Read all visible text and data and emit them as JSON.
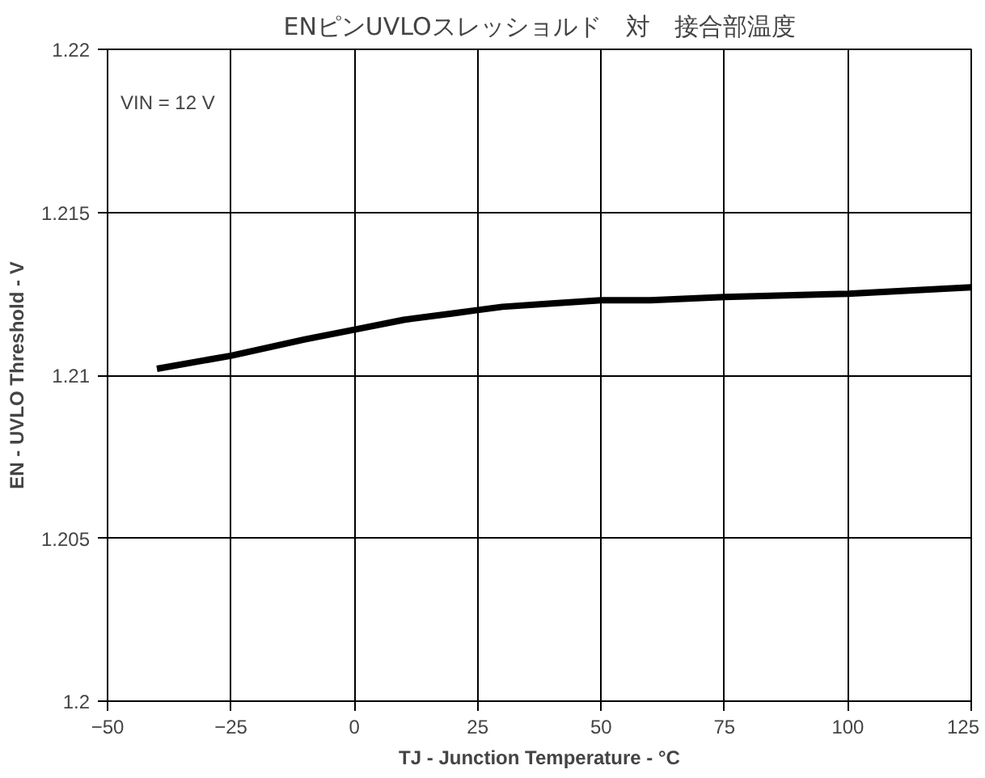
{
  "chart_data": {
    "type": "line",
    "title": "ENピンUVLOスレッショルド　対　接合部温度",
    "xlabel": "TJ - Junction Temperature - °C",
    "ylabel": "EN - UVLO Threshold - V",
    "annotations": [
      "VIN = 12 V"
    ],
    "x": [
      -40,
      -25,
      -10,
      0,
      10,
      20,
      25,
      30,
      40,
      50,
      60,
      75,
      100,
      125
    ],
    "series": [
      {
        "color": "#000000",
        "values": [
          1.2102,
          1.2106,
          1.2111,
          1.2114,
          1.2117,
          1.2119,
          1.212,
          1.2121,
          1.2122,
          1.2123,
          1.2123,
          1.2124,
          1.2125,
          1.2127
        ]
      }
    ],
    "xlim": [
      -50,
      125
    ],
    "xticks": [
      {
        "value": -50,
        "label": "−50"
      },
      {
        "value": -25,
        "label": "−25"
      },
      0,
      25,
      50,
      75,
      100,
      125
    ],
    "ylim": [
      1.2,
      1.22
    ],
    "yticks": [
      1.2,
      1.205,
      1.21,
      1.215,
      1.22
    ],
    "grid": true,
    "marker": "none",
    "line_style": "solid"
  }
}
